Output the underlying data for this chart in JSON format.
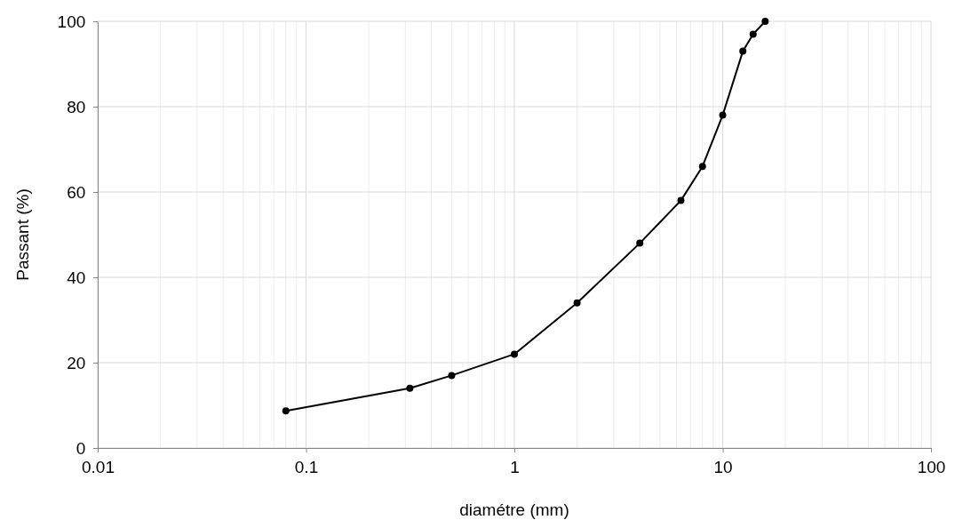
{
  "chart_data": {
    "type": "line",
    "xlabel": "diamétre (mm)",
    "ylabel": "Passant (%)",
    "log": "x",
    "grid": true,
    "marker": "circle",
    "line_style": "solid",
    "xlim": [
      0.01,
      100
    ],
    "xticks": [
      0.01,
      0.1,
      1,
      10,
      100
    ],
    "ylim": [
      0,
      100
    ],
    "yticks": [
      0,
      20,
      40,
      60,
      80,
      100
    ],
    "x": [
      0.08,
      0.315,
      0.5,
      1,
      2,
      4,
      6.3,
      8,
      10,
      12.5,
      14,
      16
    ],
    "series": [
      {
        "color": "#000000",
        "values": [
          8.7,
          14,
          17,
          22,
          34,
          48,
          58,
          66,
          78,
          93,
          97,
          100
        ]
      }
    ]
  }
}
